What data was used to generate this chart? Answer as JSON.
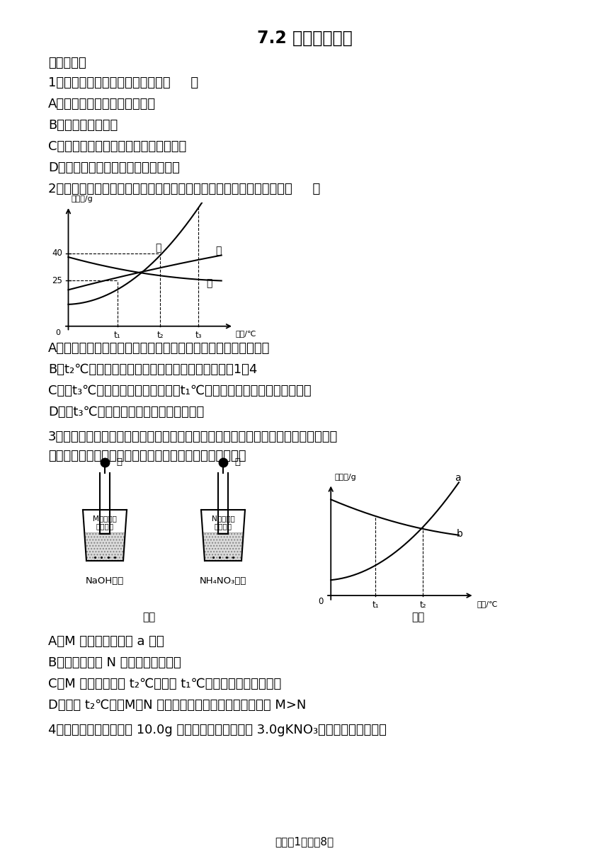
{
  "title": "7.2 物质溶解的量",
  "section1": "一、单选题",
  "q1_text": "1．下列有关溶液的叙述正确的是（     ）",
  "q1a": "A．食盐水倒出一半后浓度降低",
  "q1b": "B．果粒橙属于溶液",
  "q1c": "C．升温会降低二氧化碳在水中的溶解度",
  "q1d": "D．蔗糖可以无限溶解在一定量的水中",
  "q2_text": "2．如图为甲、乙、丙三种固体物质的溶解度曲线，下列说法错误的是（     ）",
  "q2a": "A．甲中混有少量乙，若要提纯甲，可采取冷却热饱和溶液结晶法",
  "q2b": "B．t₂℃时，丙的饱和溶液中溶质和溶剂的质量比为1：4",
  "q2c": "C．将t₃℃的甲、乙饱和溶液降温到t₁℃，析出固体甲的质量一定大于乙",
  "q2d": "D．在t₃℃时，甲、乙两物质的溶解度相等",
  "q3_text1": "3．某同学在探究物质溶解的热现象及温度对物质溶解度影响时，设计了如下实验，现",
  "q3_text2": "象如图一所示，溶解度曲线如图二所示，下列说法正确的是",
  "q3a": "A．M 的溶解度曲线为 a 曲线",
  "q3b": "B．升温可以使 N 的饱和溶液变浑浊",
  "q3c": "C．M 的饱和溶液从 t₂℃降温到 t₁℃时，溶质质量分数变大",
  "q3d": "D．如果 t₂℃时，M、N 的饱和溶液质量相等，则溶剂质量 M>N",
  "q4_text": "4．甲、乙试管中各盛有 10.0g 水，向其中一支中加入 3.0gKNO₃固体，另一支中加入",
  "footer": "试卷第1页，共8页",
  "fig1_caption": "图一",
  "fig2_caption": "图二",
  "naoh_label": "NaOH固体",
  "nh4no3_label": "NH₄NO₃固体",
  "water_label": "水",
  "m_bubble_line1": "M的饱和溶",
  "m_bubble_line2": "液变浑浊",
  "n_bubble_line1": "N的饱和溶",
  "n_bubble_line2": "液变浑浊",
  "jia_label": "甲",
  "yi_label": "乙",
  "bing_label": "丙",
  "wendu_label": "温度/℃",
  "solubility_label": "溶解度/g"
}
